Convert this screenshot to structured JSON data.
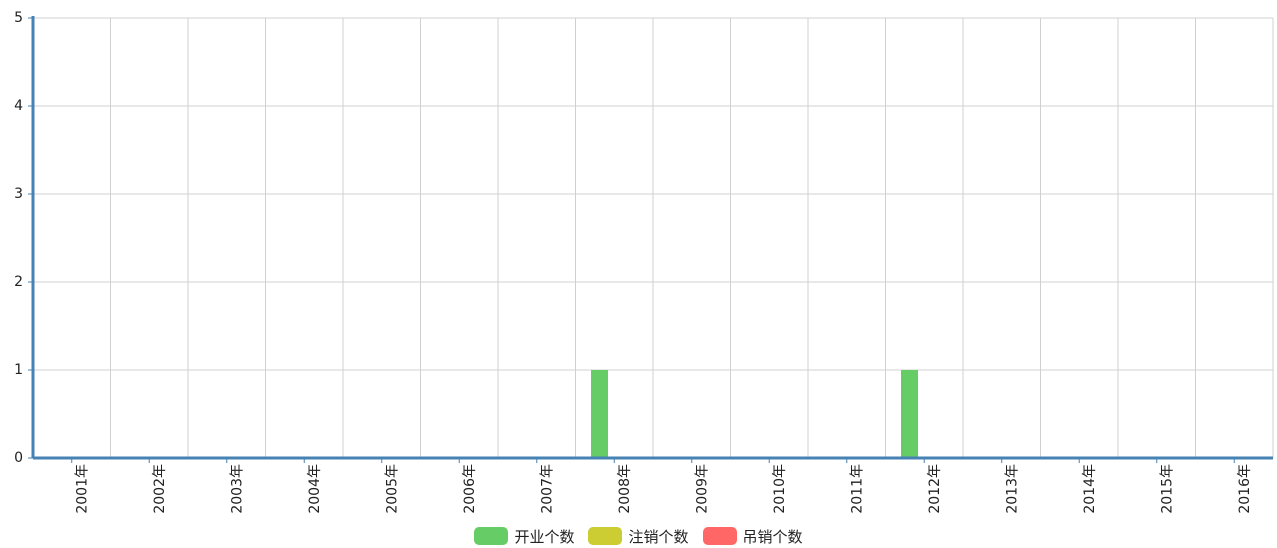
{
  "chart_data": {
    "type": "bar",
    "title": "",
    "xlabel": "",
    "ylabel": "",
    "ylim": [
      0,
      5
    ],
    "yticks": [
      "0",
      "1",
      "2",
      "3",
      "4",
      "5"
    ],
    "categories": [
      "2001年",
      "2002年",
      "2003年",
      "2004年",
      "2005年",
      "2006年",
      "2007年",
      "2008年",
      "2009年",
      "2010年",
      "2011年",
      "2012年",
      "2013年",
      "2014年",
      "2015年",
      "2016年"
    ],
    "series": [
      {
        "name": "开业个数",
        "color": "#66cc66",
        "values": [
          0,
          0,
          0,
          0,
          0,
          0,
          0,
          1,
          0,
          0,
          0,
          1,
          0,
          0,
          0,
          0
        ]
      },
      {
        "name": "注销个数",
        "color": "#cccc33",
        "values": [
          0,
          0,
          0,
          0,
          0,
          0,
          0,
          0,
          0,
          0,
          0,
          0,
          0,
          0,
          0,
          0
        ]
      },
      {
        "name": "吊销个数",
        "color": "#ff6666",
        "values": [
          0,
          0,
          0,
          0,
          0,
          0,
          0,
          0,
          0,
          0,
          0,
          0,
          0,
          0,
          0,
          0
        ]
      }
    ],
    "grid": true,
    "legend_position": "bottom-center",
    "axis_color": "#4682b4",
    "grid_color": "#d0d0d0"
  }
}
